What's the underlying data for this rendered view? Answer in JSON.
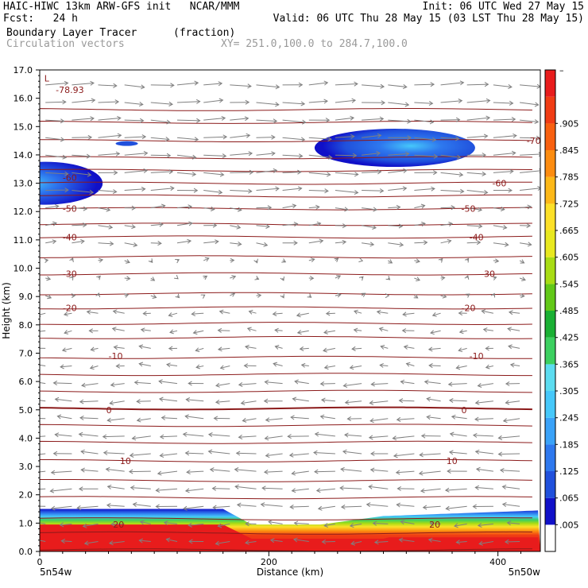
{
  "header": {
    "line1_left": "HAIC-HIWC 13km ARW-GFS init   NCAR/MMM",
    "line1_right": "Init: 06 UTC Wed 27 May 15",
    "line2_left": "Fcst:   24 h",
    "line2_right": "Valid: 06 UTC Thu 28 May 15 (03 LST Thu 28 May 15)",
    "line3_left": "Boundary Layer Tracer",
    "line3_mid": "(fraction)",
    "line4_left": "Circulation vectors",
    "line4_mid": "XY= 251.0,100.0 to 284.7,100.0"
  },
  "colors": {
    "isotherm": "#8b1a1a",
    "vector": "#808080"
  },
  "chart_data": {
    "type": "heatmap",
    "title": "Boundary Layer Tracer",
    "units": "(fraction)",
    "overlay": "Circulation vectors",
    "xlabel": "Distance (km)",
    "ylabel": "Height (km)",
    "xlim": [
      0,
      437
    ],
    "ylim": [
      0,
      17
    ],
    "x_ticks": [
      0,
      200,
      400
    ],
    "x_tick_labels": [
      "0",
      "200",
      "400"
    ],
    "y_ticks": [
      0,
      1,
      2,
      3,
      4,
      5,
      6,
      7,
      8,
      9,
      10,
      11,
      12,
      13,
      14,
      15,
      16,
      17
    ],
    "y_tick_labels": [
      "0.0",
      "1.0",
      "2.0",
      "3.0",
      "4.0",
      "5.0",
      "6.0",
      "7.0",
      "8.0",
      "9.0",
      "10.0",
      "11.0",
      "12.0",
      "13.0",
      "14.0",
      "15.0",
      "16.0",
      "17.0"
    ],
    "x_endpoint_labels": {
      "left": "5n54w",
      "right": "5n50w"
    },
    "colorbar": {
      "levels": [
        ".005",
        ".065",
        ".125",
        ".185",
        ".245",
        ".305",
        ".365",
        ".425",
        ".485",
        ".545",
        ".605",
        ".665",
        ".725",
        ".785",
        ".845",
        ".905"
      ],
      "top_label": "–",
      "colors": [
        "#ffffff",
        "#1010c8",
        "#2050dc",
        "#2e78ee",
        "#3aa2f8",
        "#46c8fa",
        "#5cdcf0",
        "#3cd060",
        "#1ab034",
        "#62c818",
        "#a8dc14",
        "#e8e820",
        "#fce028",
        "#fcb818",
        "#fc8c10",
        "#f86010",
        "#f03c14",
        "#e81c1c"
      ]
    },
    "isotherms": [
      {
        "label": "-78.93",
        "y_km": 16.3,
        "x_km": 14
      },
      {
        "label": "-70",
        "y_km": 14.5,
        "x_km": 425
      },
      {
        "label": "-60",
        "y_km": 13.2,
        "x_km": 20
      },
      {
        "label": "-60",
        "y_km": 13.0,
        "x_km": 395
      },
      {
        "label": "-50",
        "y_km": 12.1,
        "x_km": 20
      },
      {
        "label": "-50",
        "y_km": 12.1,
        "x_km": 368
      },
      {
        "label": "-40",
        "y_km": 11.1,
        "x_km": 20
      },
      {
        "label": "-40",
        "y_km": 11.1,
        "x_km": 375
      },
      {
        "label": "-30",
        "y_km": 9.8,
        "x_km": 20
      },
      {
        "label": "-30",
        "y_km": 9.8,
        "x_km": 385
      },
      {
        "label": "-20",
        "y_km": 8.6,
        "x_km": 20
      },
      {
        "label": "-20",
        "y_km": 8.6,
        "x_km": 368
      },
      {
        "label": "-10",
        "y_km": 6.9,
        "x_km": 60
      },
      {
        "label": "-10",
        "y_km": 6.9,
        "x_km": 375
      },
      {
        "label": "0",
        "y_km": 5.0,
        "x_km": 58
      },
      {
        "label": "0",
        "y_km": 5.0,
        "x_km": 368
      },
      {
        "label": "10",
        "y_km": 3.2,
        "x_km": 70
      },
      {
        "label": "10",
        "y_km": 3.2,
        "x_km": 355
      },
      {
        "label": "20",
        "y_km": 0.95,
        "x_km": 64
      },
      {
        "label": "20",
        "y_km": 0.95,
        "x_km": 340
      }
    ],
    "isotherm_heights_km": [
      0.05,
      0.65,
      1.15,
      1.9,
      2.5,
      3.2,
      3.85,
      4.45,
      5.05,
      5.65,
      6.25,
      6.85,
      7.55,
      8.05,
      8.6,
      9.1,
      9.8,
      10.4,
      11.1,
      11.55,
      12.1,
      12.55,
      13.0,
      13.45,
      13.9,
      14.5,
      15.15,
      15.6
    ]
  }
}
